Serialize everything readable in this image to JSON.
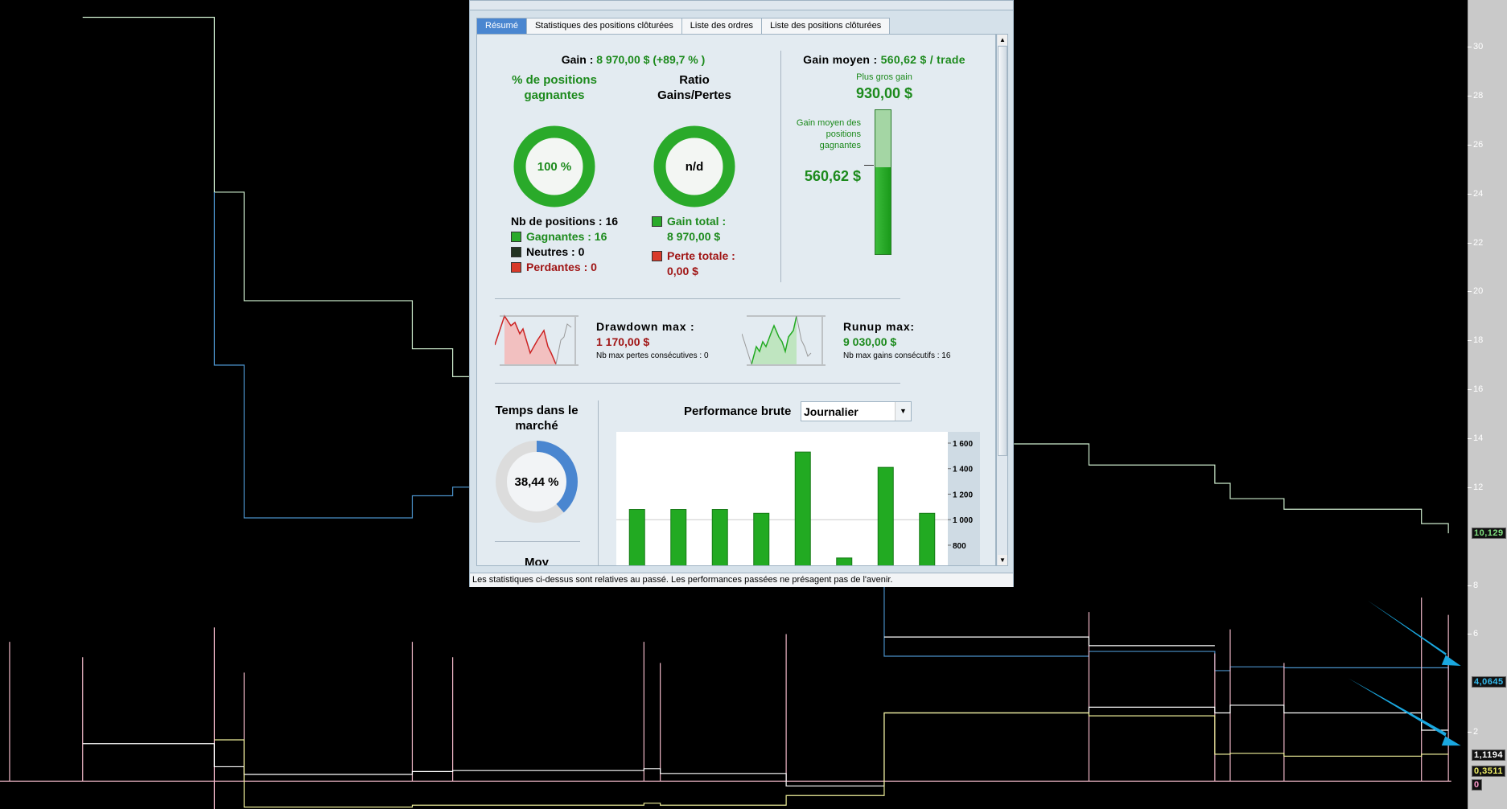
{
  "dialog": {
    "tabs": [
      {
        "label": "Résumé",
        "active": true
      },
      {
        "label": "Statistiques des positions clôturées"
      },
      {
        "label": "Liste des ordres"
      },
      {
        "label": "Liste des positions clôturées"
      }
    ],
    "gain": {
      "label": "Gain :",
      "value": "8 970,00 $ (+89,7 % )"
    },
    "win_pct": {
      "title": "% de positions gagnantes",
      "value": "100 %",
      "fraction": 1.0
    },
    "ratio": {
      "title": "Ratio Gains/Pertes",
      "value": "n/d"
    },
    "positions": {
      "total": "Nb de positions : 16",
      "winning": "Gagnantes : 16",
      "neutral": "Neutres : 0",
      "losing": "Perdantes : 0"
    },
    "totals": {
      "gain_label": "Gain total :",
      "gain_value": "8 970,00 $",
      "loss_label": "Perte totale :",
      "loss_value": "0,00 $"
    },
    "avg_gain": {
      "label": "Gain moyen :",
      "value": "560,62 $ / trade",
      "biggest_label": "Plus gros gain",
      "biggest_value": "930,00 $",
      "avg_win_label": "Gain moyen des positions gagnantes",
      "avg_win_value": "560,62 $",
      "bar_fraction": 0.6028
    },
    "drawdown": {
      "label": "Drawdown max :",
      "value": "1 170,00 $",
      "sub": "Nb max pertes consécutives : 0"
    },
    "runup": {
      "label": "Runup max:",
      "value": "9 030,00 $",
      "sub": "Nb max gains consécutifs : 16"
    },
    "time_in_market": {
      "title": "Temps dans le marché",
      "value": "38,44 %",
      "fraction": 0.3844,
      "next_label": "Moy"
    },
    "performance": {
      "label": "Performance brute",
      "period": "Journalier"
    },
    "status": "Les statistiques ci-dessus sont relatives au passé. Les performances passées ne présagent pas de l'avenir."
  },
  "chart_data": {
    "type": "bar",
    "title": "Performance brute",
    "values": [
      1080,
      1080,
      1080,
      1050,
      1530,
      700,
      1410,
      1050
    ],
    "yticks": [
      "1 600",
      "1 400",
      "1 200",
      "1 000",
      "800"
    ],
    "ytick_values": [
      1600,
      1400,
      1200,
      1000,
      800
    ],
    "ylim": [
      700,
      1680
    ],
    "grid_at": 1000,
    "color": "#22aa22"
  },
  "price_axis": {
    "ticks": [
      "30",
      "28",
      "26",
      "24",
      "22",
      "20",
      "18",
      "16",
      "14",
      "12",
      "8",
      "6",
      "2"
    ],
    "tick_values": [
      30,
      28,
      26,
      24,
      22,
      20,
      18,
      16,
      14,
      12,
      8,
      6,
      2
    ],
    "badges": [
      {
        "text": "10,129",
        "value": 10.129,
        "color": "#7fe07f"
      },
      {
        "text": "4,0645",
        "value": 4.0645,
        "color": "#33bbee"
      },
      {
        "text": "1,1194",
        "value": 1.1194,
        "color": "#ffffff"
      },
      {
        "text": "0,3511",
        "value": 0.3511,
        "color": "#eeee66"
      },
      {
        "text": "0",
        "value": 0,
        "color": "#ff99cc"
      }
    ]
  },
  "colors": {
    "accent": "#4a86d0",
    "win": "#1c8a1c",
    "loss": "#a01515",
    "arrow": "#1aa8e0"
  }
}
